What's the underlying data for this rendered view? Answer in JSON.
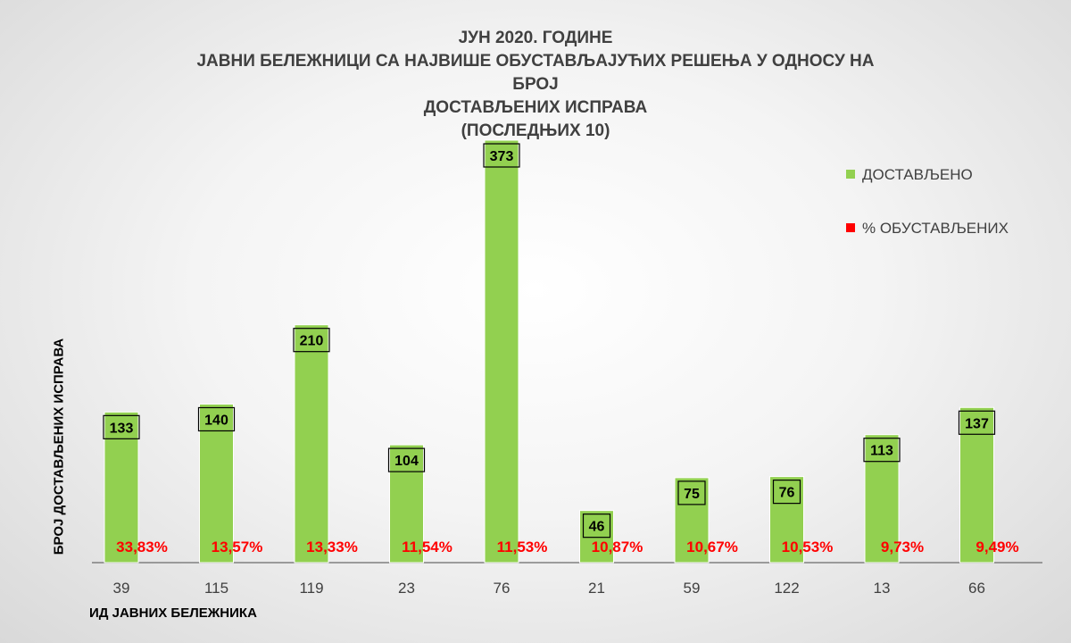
{
  "chart_data": {
    "type": "bar",
    "title": [
      "ЈУН 2020. ГОДИНЕ",
      "ЈАВНИ БЕЛЕЖНИЦИ СА НАЈВИШЕ ОБУСТАВЉАЈУЋИХ РЕШЕЊА У ОДНОСУ НА БРОЈ",
      "ДОСТАВЉЕНИХ ИСПРАВА",
      "(ПОСЛЕДЊИХ 10)"
    ],
    "xlabel": "ИД ЈАВНИХ БЕЛЕЖНИКА",
    "ylabel": "БРОЈ ДОСТАВЉЕНИХ ИСПРАВА",
    "categories": [
      "39",
      "115",
      "119",
      "23",
      "76",
      "21",
      "59",
      "122",
      "13",
      "66"
    ],
    "series": [
      {
        "name": "ДОСТАВЉЕНО",
        "values": [
          133,
          140,
          210,
          104,
          373,
          46,
          75,
          76,
          113,
          137
        ],
        "color": "#92d050"
      },
      {
        "name": "% ОБУСТАВЉЕНИХ",
        "values": [
          "33,83%",
          "13,57%",
          "13,33%",
          "11,54%",
          "11,53%",
          "10,87%",
          "10,67%",
          "10,53%",
          "9,73%",
          "9,49%"
        ],
        "color": "#ff0000"
      }
    ],
    "ylim": [
      0,
      373
    ],
    "grid": false,
    "legend": "right"
  }
}
